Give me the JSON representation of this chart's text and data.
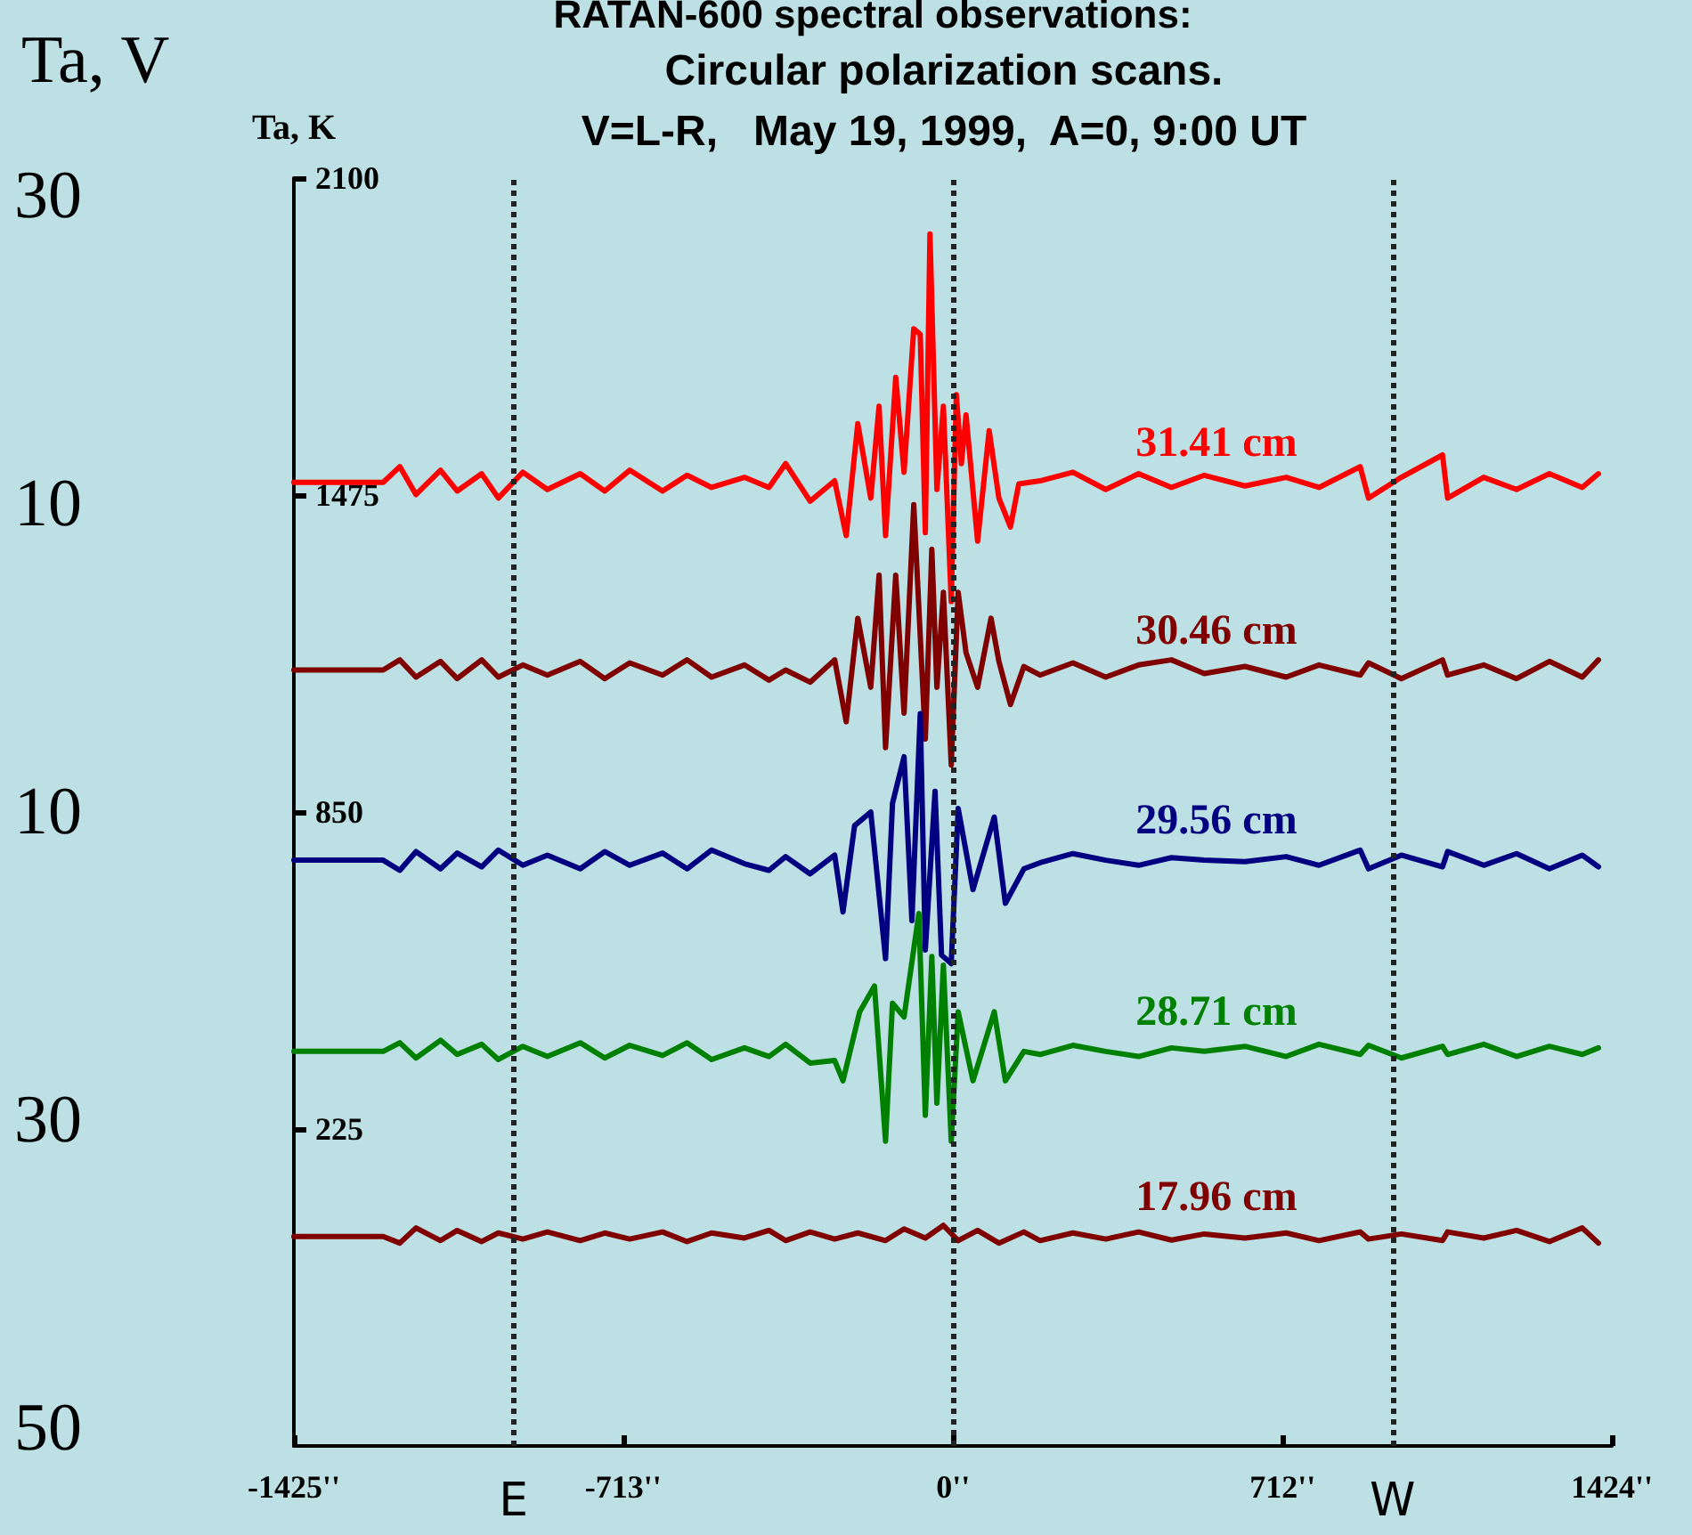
{
  "chart_data": {
    "type": "line",
    "title": "RATAN-600 spectral observations:",
    "subtitle": "Circular polarization scans.\nV=L-R,   May 19, 1999,  A=0, 9:00 UT",
    "ylabel": "Ta, K",
    "annotations": [
      "Ta, V",
      "30",
      "10",
      "10",
      "30",
      "50"
    ],
    "xlim": [
      -1425,
      1424
    ],
    "xticks": [
      {
        "value": -1425,
        "label": "-1425''"
      },
      {
        "value": -713,
        "label": "-713''"
      },
      {
        "value": 0,
        "label": "0''"
      },
      {
        "value": 712,
        "label": "712''"
      },
      {
        "value": 1424,
        "label": "1424''"
      }
    ],
    "ylim": [
      -400,
      2100
    ],
    "yticks": [
      2100,
      1475,
      850,
      225
    ],
    "grid": false,
    "legend": false,
    "marker": "none",
    "line_style": "solid",
    "ref_lines": [
      {
        "axis": "x",
        "value": -950,
        "label": "E",
        "line_style": "dotted"
      },
      {
        "axis": "x",
        "value": 0,
        "line_style": "dotted"
      },
      {
        "axis": "x",
        "value": 950,
        "label": "W",
        "line_style": "dotted"
      }
    ],
    "series": [
      {
        "name": "31.41 cm",
        "color": "#ff0000",
        "x": [
          -1425,
          -1232,
          -1196,
          -1161,
          -1108,
          -1072,
          -1019,
          -983,
          -930,
          -877,
          -806,
          -753,
          -699,
          -628,
          -575,
          -522,
          -451,
          -398,
          -362,
          -309,
          -256,
          -231,
          -206,
          -178,
          -160,
          -146,
          -124,
          -106,
          -85,
          -71,
          -60,
          -50,
          -35,
          -21,
          -4,
          7,
          18,
          28,
          53,
          78,
          99,
          124,
          142,
          188,
          259,
          330,
          401,
          472,
          543,
          631,
          720,
          791,
          880,
          898,
          969,
          1058,
          1069,
          1147,
          1218,
          1289,
          1360,
          1395
        ],
        "values": [
          1500,
          1500,
          1531,
          1476,
          1524,
          1483,
          1517,
          1469,
          1520,
          1486,
          1517,
          1483,
          1524,
          1483,
          1514,
          1490,
          1510,
          1490,
          1537,
          1463,
          1503,
          1395,
          1616,
          1469,
          1650,
          1395,
          1707,
          1520,
          1803,
          1792,
          1401,
          1990,
          1486,
          1650,
          1265,
          1673,
          1537,
          1633,
          1384,
          1602,
          1469,
          1412,
          1497,
          1503,
          1520,
          1486,
          1517,
          1490,
          1514,
          1493,
          1510,
          1490,
          1531,
          1469,
          1510,
          1554,
          1469,
          1510,
          1486,
          1517,
          1490,
          1517
        ]
      },
      {
        "name": "30.46 cm",
        "color": "#800000",
        "x": [
          -1425,
          -1232,
          -1196,
          -1161,
          -1108,
          -1072,
          -1019,
          -983,
          -930,
          -877,
          -806,
          -753,
          -699,
          -628,
          -575,
          -522,
          -451,
          -398,
          -362,
          -309,
          -256,
          -231,
          -206,
          -178,
          -160,
          -146,
          -124,
          -106,
          -85,
          -60,
          -46,
          -35,
          -21,
          -4,
          11,
          28,
          53,
          82,
          99,
          124,
          153,
          188,
          259,
          330,
          401,
          472,
          543,
          631,
          720,
          791,
          880,
          898,
          969,
          1058,
          1069,
          1147,
          1218,
          1289,
          1360,
          1395
        ],
        "values": [
          1130,
          1130,
          1150,
          1116,
          1147,
          1113,
          1150,
          1116,
          1140,
          1120,
          1147,
          1113,
          1144,
          1120,
          1150,
          1116,
          1140,
          1110,
          1130,
          1106,
          1150,
          1028,
          1232,
          1096,
          1317,
          977,
          1317,
          1045,
          1456,
          994,
          1368,
          1096,
          1283,
          943,
          1283,
          1164,
          1096,
          1232,
          1147,
          1062,
          1137,
          1120,
          1144,
          1116,
          1140,
          1150,
          1123,
          1137,
          1116,
          1140,
          1120,
          1144,
          1113,
          1150,
          1120,
          1140,
          1113,
          1147,
          1116,
          1150
        ]
      },
      {
        "name": "29.56 cm",
        "color": "#000080",
        "x": [
          -1425,
          -1232,
          -1196,
          -1161,
          -1108,
          -1072,
          -1019,
          -983,
          -930,
          -877,
          -806,
          -753,
          -699,
          -628,
          -575,
          -522,
          -451,
          -398,
          -362,
          -309,
          -256,
          -238,
          -213,
          -178,
          -146,
          -131,
          -106,
          -89,
          -71,
          -60,
          -39,
          -25,
          -4,
          11,
          43,
          89,
          113,
          153,
          188,
          259,
          330,
          401,
          472,
          543,
          631,
          720,
          791,
          880,
          898,
          969,
          1058,
          1069,
          1147,
          1218,
          1289,
          1360,
          1395
        ],
        "values": [
          755,
          755,
          735,
          772,
          738,
          769,
          742,
          775,
          745,
          765,
          738,
          772,
          745,
          769,
          738,
          775,
          748,
          735,
          762,
          728,
          765,
          653,
          823,
          850,
          561,
          867,
          959,
          636,
          1044,
          578,
          891,
          568,
          551,
          857,
          697,
          840,
          670,
          738,
          750,
          768,
          755,
          745,
          760,
          755,
          752,
          762,
          745,
          775,
          738,
          765,
          742,
          772,
          745,
          768,
          738,
          765,
          742
        ]
      },
      {
        "name": "28.71 cm",
        "color": "#008000",
        "x": [
          -1425,
          -1232,
          -1196,
          -1161,
          -1108,
          -1072,
          -1019,
          -983,
          -930,
          -877,
          -806,
          -753,
          -699,
          -628,
          -575,
          -522,
          -451,
          -398,
          -362,
          -309,
          -256,
          -238,
          -202,
          -170,
          -146,
          -131,
          -106,
          -74,
          -60,
          -46,
          -35,
          -21,
          -4,
          11,
          43,
          89,
          113,
          153,
          188,
          259,
          330,
          401,
          472,
          543,
          631,
          720,
          791,
          880,
          898,
          969,
          1058,
          1069,
          1147,
          1218,
          1289,
          1360,
          1395
        ],
        "values": [
          378,
          378,
          395,
          365,
          400,
          372,
          392,
          362,
          388,
          368,
          395,
          365,
          390,
          370,
          395,
          362,
          385,
          368,
          392,
          355,
          360,
          320,
          456,
          507,
          201,
          473,
          446,
          650,
          252,
          565,
          276,
          548,
          201,
          456,
          320,
          456,
          320,
          378,
          372,
          390,
          378,
          368,
          385,
          378,
          388,
          368,
          392,
          372,
          390,
          365,
          388,
          372,
          392,
          368,
          388,
          372,
          385
        ]
      },
      {
        "name": "17.96 cm",
        "color": "#800000",
        "x": [
          -1425,
          -1232,
          -1196,
          -1161,
          -1108,
          -1072,
          -1019,
          -983,
          -930,
          -877,
          -806,
          -753,
          -699,
          -628,
          -575,
          -522,
          -451,
          -398,
          -362,
          -309,
          -256,
          -206,
          -146,
          -106,
          -60,
          -21,
          11,
          53,
          99,
          153,
          188,
          259,
          330,
          401,
          472,
          543,
          631,
          720,
          791,
          880,
          898,
          969,
          1058,
          1069,
          1147,
          1218,
          1289,
          1360,
          1395
        ],
        "values": [
          13,
          13,
          0,
          30,
          5,
          25,
          3,
          20,
          8,
          22,
          5,
          20,
          8,
          22,
          3,
          20,
          10,
          25,
          5,
          22,
          8,
          20,
          5,
          28,
          10,
          35,
          5,
          25,
          0,
          22,
          5,
          20,
          8,
          22,
          6,
          18,
          10,
          20,
          5,
          22,
          8,
          18,
          5,
          22,
          10,
          25,
          3,
          30,
          0
        ]
      }
    ]
  }
}
